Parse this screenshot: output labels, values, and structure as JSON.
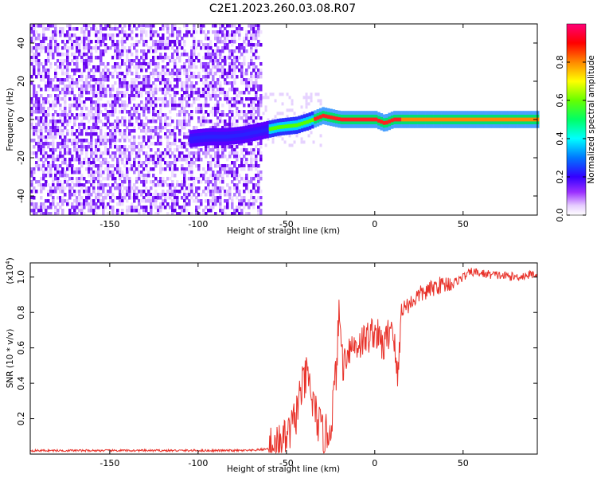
{
  "title": "C2E1.2023.260.03.08.R07",
  "chart_data": [
    {
      "type": "heatmap",
      "name": "spectrogram",
      "xlabel": "Height of straight line (km)",
      "ylabel": "Frequency (Hz)",
      "xlim": [
        -195,
        92
      ],
      "ylim": [
        -50,
        50
      ],
      "xticks": [
        -150,
        -100,
        -50,
        0,
        50
      ],
      "yticks": [
        -40,
        -20,
        0,
        20,
        40
      ],
      "noise_region_x": [
        -195,
        -65
      ],
      "signal_line": [
        [
          -105,
          -10
        ],
        [
          -95,
          -9
        ],
        [
          -85,
          -9
        ],
        [
          -75,
          -8
        ],
        [
          -65,
          -6
        ],
        [
          -55,
          -4
        ],
        [
          -45,
          -3
        ],
        [
          -38,
          -1
        ],
        [
          -30,
          2
        ],
        [
          -25,
          1
        ],
        [
          -20,
          0
        ],
        [
          -10,
          0
        ],
        [
          0,
          0
        ],
        [
          5,
          -2
        ],
        [
          10,
          0
        ],
        [
          30,
          0
        ],
        [
          50,
          0
        ],
        [
          70,
          0
        ],
        [
          92,
          0
        ]
      ],
      "colorbar": {
        "label": "Normalized spectral amplitude",
        "range": [
          0,
          1
        ],
        "ticks": [
          0.0,
          0.2,
          0.4,
          0.6,
          0.8
        ],
        "tick_labels": [
          "0.0",
          "0.2",
          "0.4",
          "0.6",
          "0.8"
        ]
      },
      "grid": false
    },
    {
      "type": "line",
      "name": "snr",
      "xlabel": "Height of straight line (km)",
      "ylabel": "SNR (10 * v/v)",
      "y_multiplier": "(x10",
      "y_multiplier_exp": "4",
      "y_multiplier_close": ")",
      "xlim": [
        -195,
        92
      ],
      "ylim": [
        0,
        1.08
      ],
      "xticks": [
        -150,
        -100,
        -50,
        0,
        50
      ],
      "yticks": [
        0.2,
        0.4,
        0.6,
        0.8,
        1.0
      ],
      "color": "#e8322a",
      "series": [
        {
          "x": [
            -195,
            -150,
            -100,
            -70,
            -60,
            -55,
            -50,
            -45,
            -42,
            -38,
            -35,
            -32,
            -30,
            -28,
            -25,
            -22,
            -20,
            -18,
            -15,
            -10,
            -5,
            0,
            5,
            10,
            13,
            15,
            20,
            25,
            30,
            35,
            40,
            45,
            50,
            55,
            60,
            70,
            80,
            92
          ],
          "y": [
            0.02,
            0.02,
            0.02,
            0.02,
            0.03,
            0.05,
            0.08,
            0.2,
            0.35,
            0.45,
            0.28,
            0.18,
            0.12,
            0.1,
            0.15,
            0.45,
            0.8,
            0.5,
            0.6,
            0.62,
            0.65,
            0.7,
            0.6,
            0.75,
            0.4,
            0.82,
            0.85,
            0.9,
            0.92,
            0.95,
            0.96,
            0.97,
            1.0,
            1.03,
            1.02,
            1.01,
            1.0,
            1.02
          ]
        }
      ],
      "grid": false
    }
  ]
}
